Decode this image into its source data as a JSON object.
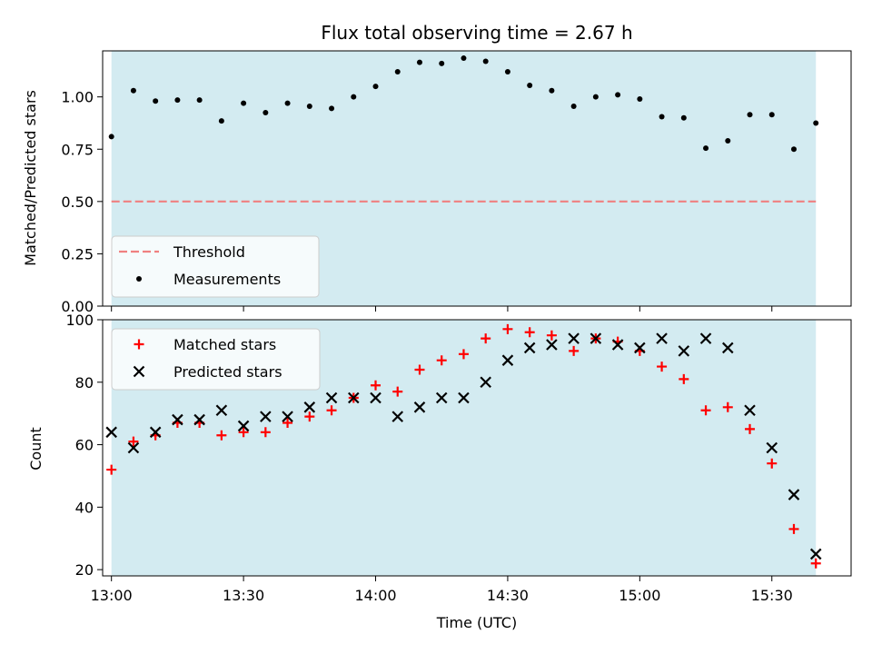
{
  "chart_data": [
    {
      "type": "scatter",
      "title": "Flux total observing time = 2.67 h",
      "ylabel": "Matched/Predicted stars",
      "xlabel": "",
      "ylim": [
        0,
        1.22
      ],
      "yticks": [
        0.0,
        0.25,
        0.5,
        0.75,
        1.0
      ],
      "ytick_labels": [
        "0.00",
        "0.25",
        "0.50",
        "0.75",
        "1.00"
      ],
      "shaded_region": {
        "x_start": "13:00",
        "x_end": "15:40",
        "color": "#d3ebf1"
      },
      "threshold": {
        "name": "Threshold",
        "y": 0.5,
        "color": "#f08080",
        "style": "dashed"
      },
      "legend": {
        "position": "lower-left",
        "entries": [
          "Threshold",
          "Measurements"
        ]
      },
      "series": [
        {
          "name": "Measurements",
          "marker": "dot",
          "color": "#000000",
          "x": [
            "13:00",
            "13:05",
            "13:10",
            "13:15",
            "13:20",
            "13:25",
            "13:30",
            "13:35",
            "13:40",
            "13:45",
            "13:50",
            "13:55",
            "14:00",
            "14:05",
            "14:10",
            "14:15",
            "14:20",
            "14:25",
            "14:30",
            "14:35",
            "14:40",
            "14:45",
            "14:50",
            "14:55",
            "15:00",
            "15:05",
            "15:10",
            "15:15",
            "15:20",
            "15:25",
            "15:30",
            "15:35",
            "15:40"
          ],
          "values": [
            0.81,
            1.03,
            0.98,
            0.985,
            0.985,
            0.885,
            0.97,
            0.925,
            0.97,
            0.955,
            0.945,
            1.0,
            1.05,
            1.12,
            1.165,
            1.16,
            1.185,
            1.17,
            1.12,
            1.055,
            1.03,
            0.955,
            1.0,
            1.01,
            0.99,
            0.905,
            0.9,
            0.755,
            0.79,
            0.915,
            0.915,
            0.75,
            0.875
          ]
        }
      ]
    },
    {
      "type": "scatter",
      "title": "",
      "ylabel": "Count",
      "xlabel": "Time (UTC)",
      "ylim": [
        18,
        100
      ],
      "yticks": [
        20,
        40,
        60,
        80,
        100
      ],
      "ytick_labels": [
        "20",
        "40",
        "60",
        "80",
        "100"
      ],
      "xlim": [
        "12:58",
        "15:48"
      ],
      "xticks": [
        "13:00",
        "13:30",
        "14:00",
        "14:30",
        "15:00",
        "15:30"
      ],
      "shaded_region": {
        "x_start": "13:00",
        "x_end": "15:40",
        "color": "#d3ebf1"
      },
      "legend": {
        "position": "upper-left",
        "entries": [
          "Matched stars",
          "Predicted stars"
        ]
      },
      "x": [
        "13:00",
        "13:05",
        "13:10",
        "13:15",
        "13:20",
        "13:25",
        "13:30",
        "13:35",
        "13:40",
        "13:45",
        "13:50",
        "13:55",
        "14:00",
        "14:05",
        "14:10",
        "14:15",
        "14:20",
        "14:25",
        "14:30",
        "14:35",
        "14:40",
        "14:45",
        "14:50",
        "14:55",
        "15:00",
        "15:05",
        "15:10",
        "15:15",
        "15:20",
        "15:25",
        "15:30",
        "15:35",
        "15:40"
      ],
      "series": [
        {
          "name": "Matched stars",
          "marker": "plus",
          "color": "#ff0000",
          "values": [
            52,
            61,
            63,
            67,
            67,
            63,
            64,
            64,
            67,
            69,
            71,
            75,
            79,
            77,
            84,
            87,
            89,
            94,
            97,
            96,
            95,
            90,
            94,
            93,
            90,
            85,
            81,
            71,
            72,
            65,
            54,
            33,
            22
          ]
        },
        {
          "name": "Predicted stars",
          "marker": "x",
          "color": "#000000",
          "values": [
            64,
            59,
            64,
            68,
            68,
            71,
            66,
            69,
            69,
            72,
            75,
            75,
            75,
            69,
            72,
            75,
            75,
            80,
            87,
            91,
            92,
            94,
            94,
            92,
            91,
            94,
            90,
            94,
            91,
            71,
            59,
            44,
            25
          ]
        }
      ]
    }
  ]
}
